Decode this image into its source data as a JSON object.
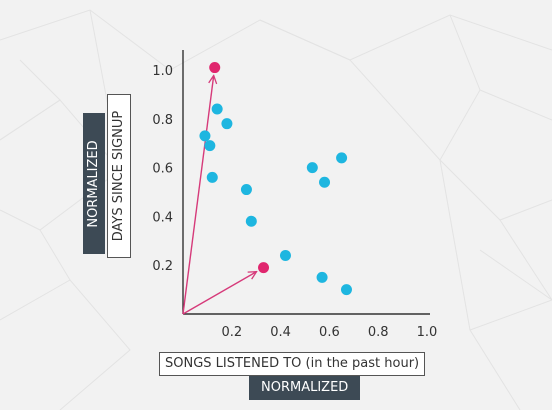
{
  "chart_data": {
    "type": "scatter",
    "xlabel": "SONGS LISTENED TO (in the past hour)",
    "xlabel_tag": "NORMALIZED",
    "ylabel": "DAYS SINCE SIGNUP",
    "ylabel_tag": "NORMALIZED",
    "xlim": [
      0,
      1.0
    ],
    "ylim": [
      0,
      1.0
    ],
    "x_ticks": [
      "0.2",
      "0.4",
      "0.6",
      "0.8",
      "1.0"
    ],
    "y_ticks": [
      "0.2",
      "0.4",
      "0.6",
      "0.8",
      "1.0"
    ],
    "grid": false,
    "series": [
      {
        "color": "#1eb6e0",
        "points": [
          {
            "x": 0.14,
            "y": 0.84
          },
          {
            "x": 0.18,
            "y": 0.78
          },
          {
            "x": 0.09,
            "y": 0.73
          },
          {
            "x": 0.11,
            "y": 0.69
          },
          {
            "x": 0.12,
            "y": 0.56
          },
          {
            "x": 0.26,
            "y": 0.51
          },
          {
            "x": 0.28,
            "y": 0.38
          },
          {
            "x": 0.42,
            "y": 0.24
          },
          {
            "x": 0.53,
            "y": 0.6
          },
          {
            "x": 0.58,
            "y": 0.54
          },
          {
            "x": 0.65,
            "y": 0.64
          },
          {
            "x": 0.57,
            "y": 0.15
          },
          {
            "x": 0.67,
            "y": 0.1
          }
        ]
      },
      {
        "color": "#e0266e",
        "points": [
          {
            "x": 0.13,
            "y": 1.01
          },
          {
            "x": 0.33,
            "y": 0.19
          }
        ]
      }
    ],
    "vectors": [
      {
        "from": [
          0,
          0
        ],
        "to": [
          0.13,
          1.01
        ],
        "color": "#d63a7a"
      },
      {
        "from": [
          0,
          0
        ],
        "to": [
          0.33,
          0.19
        ],
        "color": "#d63a7a"
      }
    ]
  }
}
